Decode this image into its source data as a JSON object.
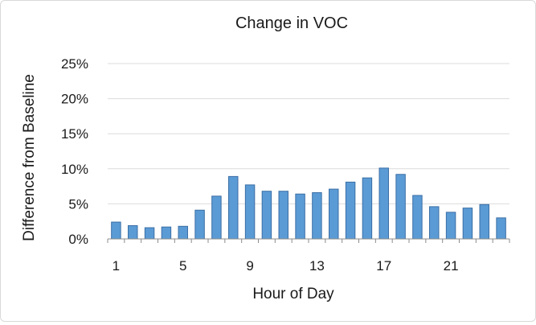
{
  "chart_data": {
    "type": "bar",
    "title": "Change in VOC",
    "xlabel": "Hour of Day",
    "ylabel": "Difference from Baseline",
    "categories": [
      1,
      2,
      3,
      4,
      5,
      6,
      7,
      8,
      9,
      10,
      11,
      12,
      13,
      14,
      15,
      16,
      17,
      18,
      19,
      20,
      21,
      22,
      23,
      24
    ],
    "values": [
      2.4,
      1.9,
      1.6,
      1.7,
      1.8,
      4.1,
      6.1,
      8.9,
      7.7,
      6.8,
      6.8,
      6.4,
      6.6,
      7.1,
      8.1,
      8.7,
      10.1,
      9.2,
      6.2,
      4.6,
      3.8,
      4.4,
      4.9,
      3.0
    ],
    "ylim": [
      0,
      25
    ],
    "yticks": [
      "0%",
      "5%",
      "10%",
      "15%",
      "20%",
      "25%"
    ],
    "ytick_values": [
      0,
      5,
      10,
      15,
      20,
      25
    ],
    "xtick_labels": [
      "1",
      "5",
      "9",
      "13",
      "17",
      "21"
    ],
    "xtick_values": [
      1,
      5,
      9,
      13,
      17,
      21
    ],
    "bar_color": "#5b9bd5",
    "grid": true,
    "legend": "none"
  }
}
